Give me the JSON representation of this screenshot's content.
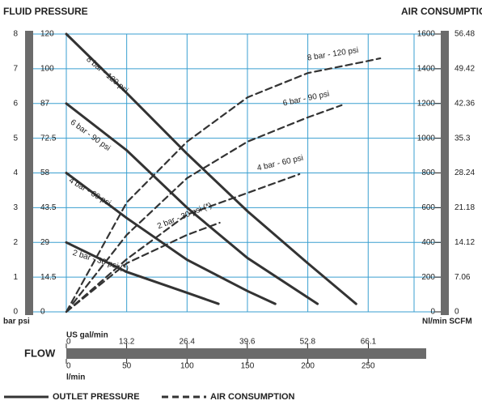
{
  "chart_data": {
    "type": "line",
    "title": "FLUID PRESSURE",
    "title_right": "AIR CONSUMPTION",
    "xlabel": "FLOW",
    "x_label_top": "US gal/min",
    "x_label_bottom": "l/min",
    "ylabel": "bar psi",
    "y2label": "Nl/min SCFM",
    "xlim": [
      0,
      288
    ],
    "xticks": [
      0,
      50,
      100,
      150,
      200,
      250
    ],
    "x2lim": [
      0,
      76.1
    ],
    "x2ticks": [
      0,
      13.2,
      26.4,
      39.6,
      52.8,
      66.1
    ],
    "ylim": [
      0,
      8
    ],
    "yticks": [
      0,
      1,
      2,
      3,
      4,
      5,
      6,
      7,
      8
    ],
    "psi_ticks": [
      0,
      14.5,
      29,
      43.5,
      58,
      72.5,
      87,
      100,
      120
    ],
    "y2lim": [
      0,
      1600
    ],
    "y2ticks": [
      0,
      200,
      400,
      600,
      800,
      1000,
      1200,
      1400,
      1600
    ],
    "y3lim": [
      0,
      56.48
    ],
    "y3ticks": [
      0,
      7.06,
      14.12,
      21.18,
      28.24,
      35.3,
      42.36,
      49.42,
      56.48
    ],
    "grid": true,
    "grid_color": "#3a9fd0",
    "axis_bar_color": "#6b6b6b",
    "series": [
      {
        "name": "8 bar - 120 psi",
        "axis": "y",
        "dash": false,
        "color": "#333333",
        "x": [
          0,
          50,
          100,
          150,
          200,
          240
        ],
        "values": [
          8,
          6.3,
          4.55,
          2.9,
          1.4,
          0.23
        ]
      },
      {
        "name": "6 bar - 90 psi",
        "axis": "y",
        "dash": false,
        "color": "#333333",
        "x": [
          0,
          50,
          100,
          150,
          208
        ],
        "values": [
          6,
          4.65,
          3.0,
          1.55,
          0.23
        ]
      },
      {
        "name": "4 bar - 60 psi",
        "axis": "y",
        "dash": false,
        "color": "#333333",
        "x": [
          0,
          50,
          100,
          150,
          173
        ],
        "values": [
          4,
          2.7,
          1.5,
          0.6,
          0.23
        ]
      },
      {
        "name": "2 bar - 30 psi (*)",
        "axis": "y",
        "dash": false,
        "color": "#333333",
        "x": [
          0,
          50,
          100,
          126
        ],
        "values": [
          2,
          1.15,
          0.55,
          0.23
        ]
      },
      {
        "name": "8 bar - 120 psi",
        "axis": "y2",
        "dash": true,
        "color": "#333333",
        "x": [
          0,
          50,
          100,
          150,
          200,
          250,
          260
        ],
        "values": [
          0,
          630,
          980,
          1235,
          1375,
          1445,
          1460
        ]
      },
      {
        "name": "6 bar - 90 psi",
        "axis": "y2",
        "dash": true,
        "color": "#333333",
        "x": [
          0,
          50,
          100,
          150,
          200,
          228
        ],
        "values": [
          0,
          443,
          770,
          980,
          1120,
          1190
        ]
      },
      {
        "name": "4 bar - 60 psi",
        "axis": "y2",
        "dash": true,
        "color": "#333333",
        "x": [
          0,
          50,
          100,
          150,
          193
        ],
        "values": [
          0,
          303,
          560,
          685,
          793
        ]
      },
      {
        "name": "2 bar - 30 psi (*)",
        "axis": "y2",
        "dash": true,
        "color": "#333333",
        "x": [
          0,
          50,
          100,
          127
        ],
        "values": [
          0,
          280,
          443,
          513
        ]
      }
    ],
    "legend": [
      {
        "label": "OUTLET PRESSURE",
        "dash": false
      },
      {
        "label": "AIR CONSUMPTION",
        "dash": true
      }
    ]
  }
}
